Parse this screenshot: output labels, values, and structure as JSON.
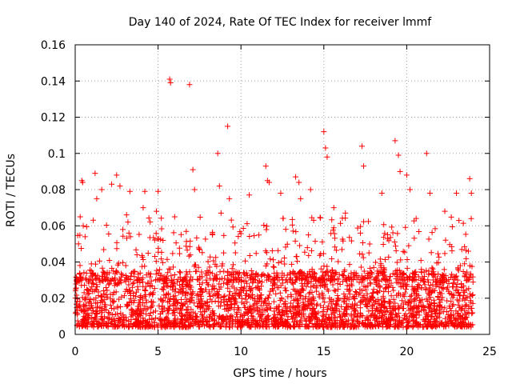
{
  "chart_data": {
    "type": "scatter",
    "title": "Day 140 of 2024, Rate Of TEC Index for receiver lmmf",
    "xlabel": "GPS time / hours",
    "ylabel": "ROTI / TECUs",
    "xlim": [
      0,
      25
    ],
    "ylim": [
      0,
      0.16
    ],
    "x_ticks": [
      0,
      5,
      10,
      15,
      20,
      25
    ],
    "x_tick_labels": [
      "0",
      "5",
      "10",
      "15",
      "20",
      "25"
    ],
    "y_ticks": [
      0,
      0.02,
      0.04,
      0.06,
      0.08,
      0.1,
      0.12,
      0.14,
      0.16
    ],
    "y_tick_labels": [
      "0",
      "0.02",
      "0.04",
      "0.06",
      "0.08",
      "0.1",
      "0.12",
      "0.14",
      "0.16"
    ],
    "grid": true,
    "marker": "+",
    "marker_color": "#ff0000",
    "series": [
      {
        "name": "ROTI",
        "x": [
          0.2,
          0.3,
          0.4,
          0.45,
          1.2,
          1.3,
          1.6,
          2.2,
          2.5,
          2.7,
          3.1,
          3.3,
          4.1,
          4.2,
          4.9,
          5.0,
          5.7,
          5.75,
          6.0,
          6.9,
          7.1,
          7.2,
          8.6,
          8.7,
          8.8,
          9.2,
          9.3,
          10.5,
          11.5,
          11.6,
          11.7,
          12.4,
          13.3,
          13.5,
          13.6,
          14.2,
          15.0,
          15.1,
          15.2,
          15.6,
          16.3,
          17.3,
          17.4,
          18.5,
          19.3,
          19.5,
          19.6,
          20.0,
          20.2,
          21.2,
          21.4,
          22.3,
          23.0,
          23.8,
          23.9
        ],
        "y": [
          0.05,
          0.065,
          0.085,
          0.084,
          0.089,
          0.075,
          0.08,
          0.083,
          0.088,
          0.082,
          0.066,
          0.079,
          0.07,
          0.079,
          0.068,
          0.079,
          0.141,
          0.139,
          0.065,
          0.138,
          0.091,
          0.08,
          0.1,
          0.082,
          0.067,
          0.115,
          0.075,
          0.077,
          0.093,
          0.085,
          0.084,
          0.078,
          0.087,
          0.084,
          0.075,
          0.08,
          0.112,
          0.103,
          0.098,
          0.07,
          0.067,
          0.104,
          0.093,
          0.078,
          0.107,
          0.099,
          0.09,
          0.088,
          0.08,
          0.1,
          0.078,
          0.068,
          0.078,
          0.086,
          0.078
        ]
      }
    ],
    "background_band": {
      "description": "dense cluster of points between 0.005 and 0.035 TECUs across 0-24 h",
      "x_range": [
        0,
        24
      ],
      "y_range": [
        0.004,
        0.035
      ]
    }
  }
}
